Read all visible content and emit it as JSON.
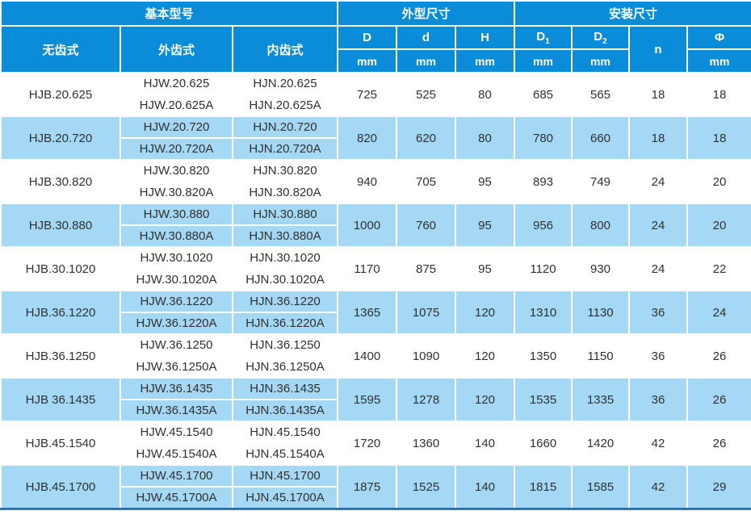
{
  "colors": {
    "header_blue": "#0a8cd8",
    "row_alt_blue": "#a4d8f4",
    "row_white": "#ffffff",
    "border_white": "#ffffff",
    "bottom_border_blue": "#2f74ad",
    "header_text": "#ffffff",
    "body_text": "#303030"
  },
  "table": {
    "header": {
      "groups": [
        {
          "label": "基本型号",
          "span": 3
        },
        {
          "label": "外型尺寸",
          "span": 3
        },
        {
          "label": "安装尺寸",
          "span": 4
        }
      ],
      "model_cols": [
        "无齿式",
        "外齿式",
        "内齿式"
      ],
      "dim_cols": [
        {
          "label": "D",
          "sub": "",
          "unit": "mm"
        },
        {
          "label": "d",
          "sub": "",
          "unit": "mm"
        },
        {
          "label": "H",
          "sub": "",
          "unit": "mm"
        },
        {
          "label": "D",
          "sub": "1",
          "unit": "mm"
        },
        {
          "label": "D",
          "sub": "2",
          "unit": "mm"
        },
        {
          "label": "n",
          "sub": "",
          "unit": ""
        },
        {
          "label": "Φ",
          "sub": "",
          "unit": "mm"
        }
      ]
    },
    "rows": [
      {
        "wuchi": "HJB.20.625",
        "waichi": [
          "HJW.20.625",
          "HJW.20.625A"
        ],
        "neichi": [
          "HJN.20.625",
          "HJN.20.625A"
        ],
        "dims": [
          "725",
          "525",
          "80",
          "685",
          "565",
          "18",
          "18"
        ]
      },
      {
        "wuchi": "HJB.20.720",
        "waichi": [
          "HJW.20.720",
          "HJW.20.720A"
        ],
        "neichi": [
          "HJN.20.720",
          "HJN.20.720A"
        ],
        "dims": [
          "820",
          "620",
          "80",
          "780",
          "660",
          "18",
          "18"
        ]
      },
      {
        "wuchi": "HJB.30.820",
        "waichi": [
          "HJW.30.820",
          "HJW.30.820A"
        ],
        "neichi": [
          "HJN.30.820",
          "HJN.30.820A"
        ],
        "dims": [
          "940",
          "705",
          "95",
          "893",
          "749",
          "24",
          "20"
        ]
      },
      {
        "wuchi": "HJB.30.880",
        "waichi": [
          "HJW.30.880",
          "HJW.30.880A"
        ],
        "neichi": [
          "HJN.30.880",
          "HJN.30.880A"
        ],
        "dims": [
          "1000",
          "760",
          "95",
          "956",
          "800",
          "24",
          "20"
        ]
      },
      {
        "wuchi": "HJB.30.1020",
        "waichi": [
          "HJW.30.1020",
          "HJW.30.1020A"
        ],
        "neichi": [
          "HJN.30.1020",
          "HJN.30.1020A"
        ],
        "dims": [
          "1170",
          "875",
          "95",
          "1120",
          "930",
          "24",
          "22"
        ]
      },
      {
        "wuchi": "HJB.36.1220",
        "waichi": [
          "HJW.36.1220",
          "HJW.36.1220A"
        ],
        "neichi": [
          "HJN.36.1220",
          "HJN.36.1220A"
        ],
        "dims": [
          "1365",
          "1075",
          "120",
          "1310",
          "1130",
          "36",
          "24"
        ]
      },
      {
        "wuchi": "HJB.36.1250",
        "waichi": [
          "HJW.36.1250",
          "HJW.36.1250A"
        ],
        "neichi": [
          "HJN.36.1250",
          "HJN.36.1250A"
        ],
        "dims": [
          "1400",
          "1090",
          "120",
          "1350",
          "1150",
          "36",
          "26"
        ]
      },
      {
        "wuchi": "HJB 36.1435",
        "waichi": [
          "HJW.36.1435",
          "HJW.36.1435A"
        ],
        "neichi": [
          "HJN.36.1435",
          "HJN.36.1435A"
        ],
        "dims": [
          "1595",
          "1278",
          "120",
          "1535",
          "1335",
          "36",
          "26"
        ]
      },
      {
        "wuchi": "HJB.45.1540",
        "waichi": [
          "HJW.45.1540",
          "HJW.45.1540A"
        ],
        "neichi": [
          "HJN.45.1540",
          "HJN.45.1540A"
        ],
        "dims": [
          "1720",
          "1360",
          "140",
          "1660",
          "1420",
          "42",
          "26"
        ]
      },
      {
        "wuchi": "HJB.45.1700",
        "waichi": [
          "HJW.45.1700",
          "HJW.45.1700A"
        ],
        "neichi": [
          "HJN.45.1700",
          "HJN.45.1700A"
        ],
        "dims": [
          "1875",
          "1525",
          "140",
          "1815",
          "1585",
          "42",
          "29"
        ]
      }
    ]
  }
}
